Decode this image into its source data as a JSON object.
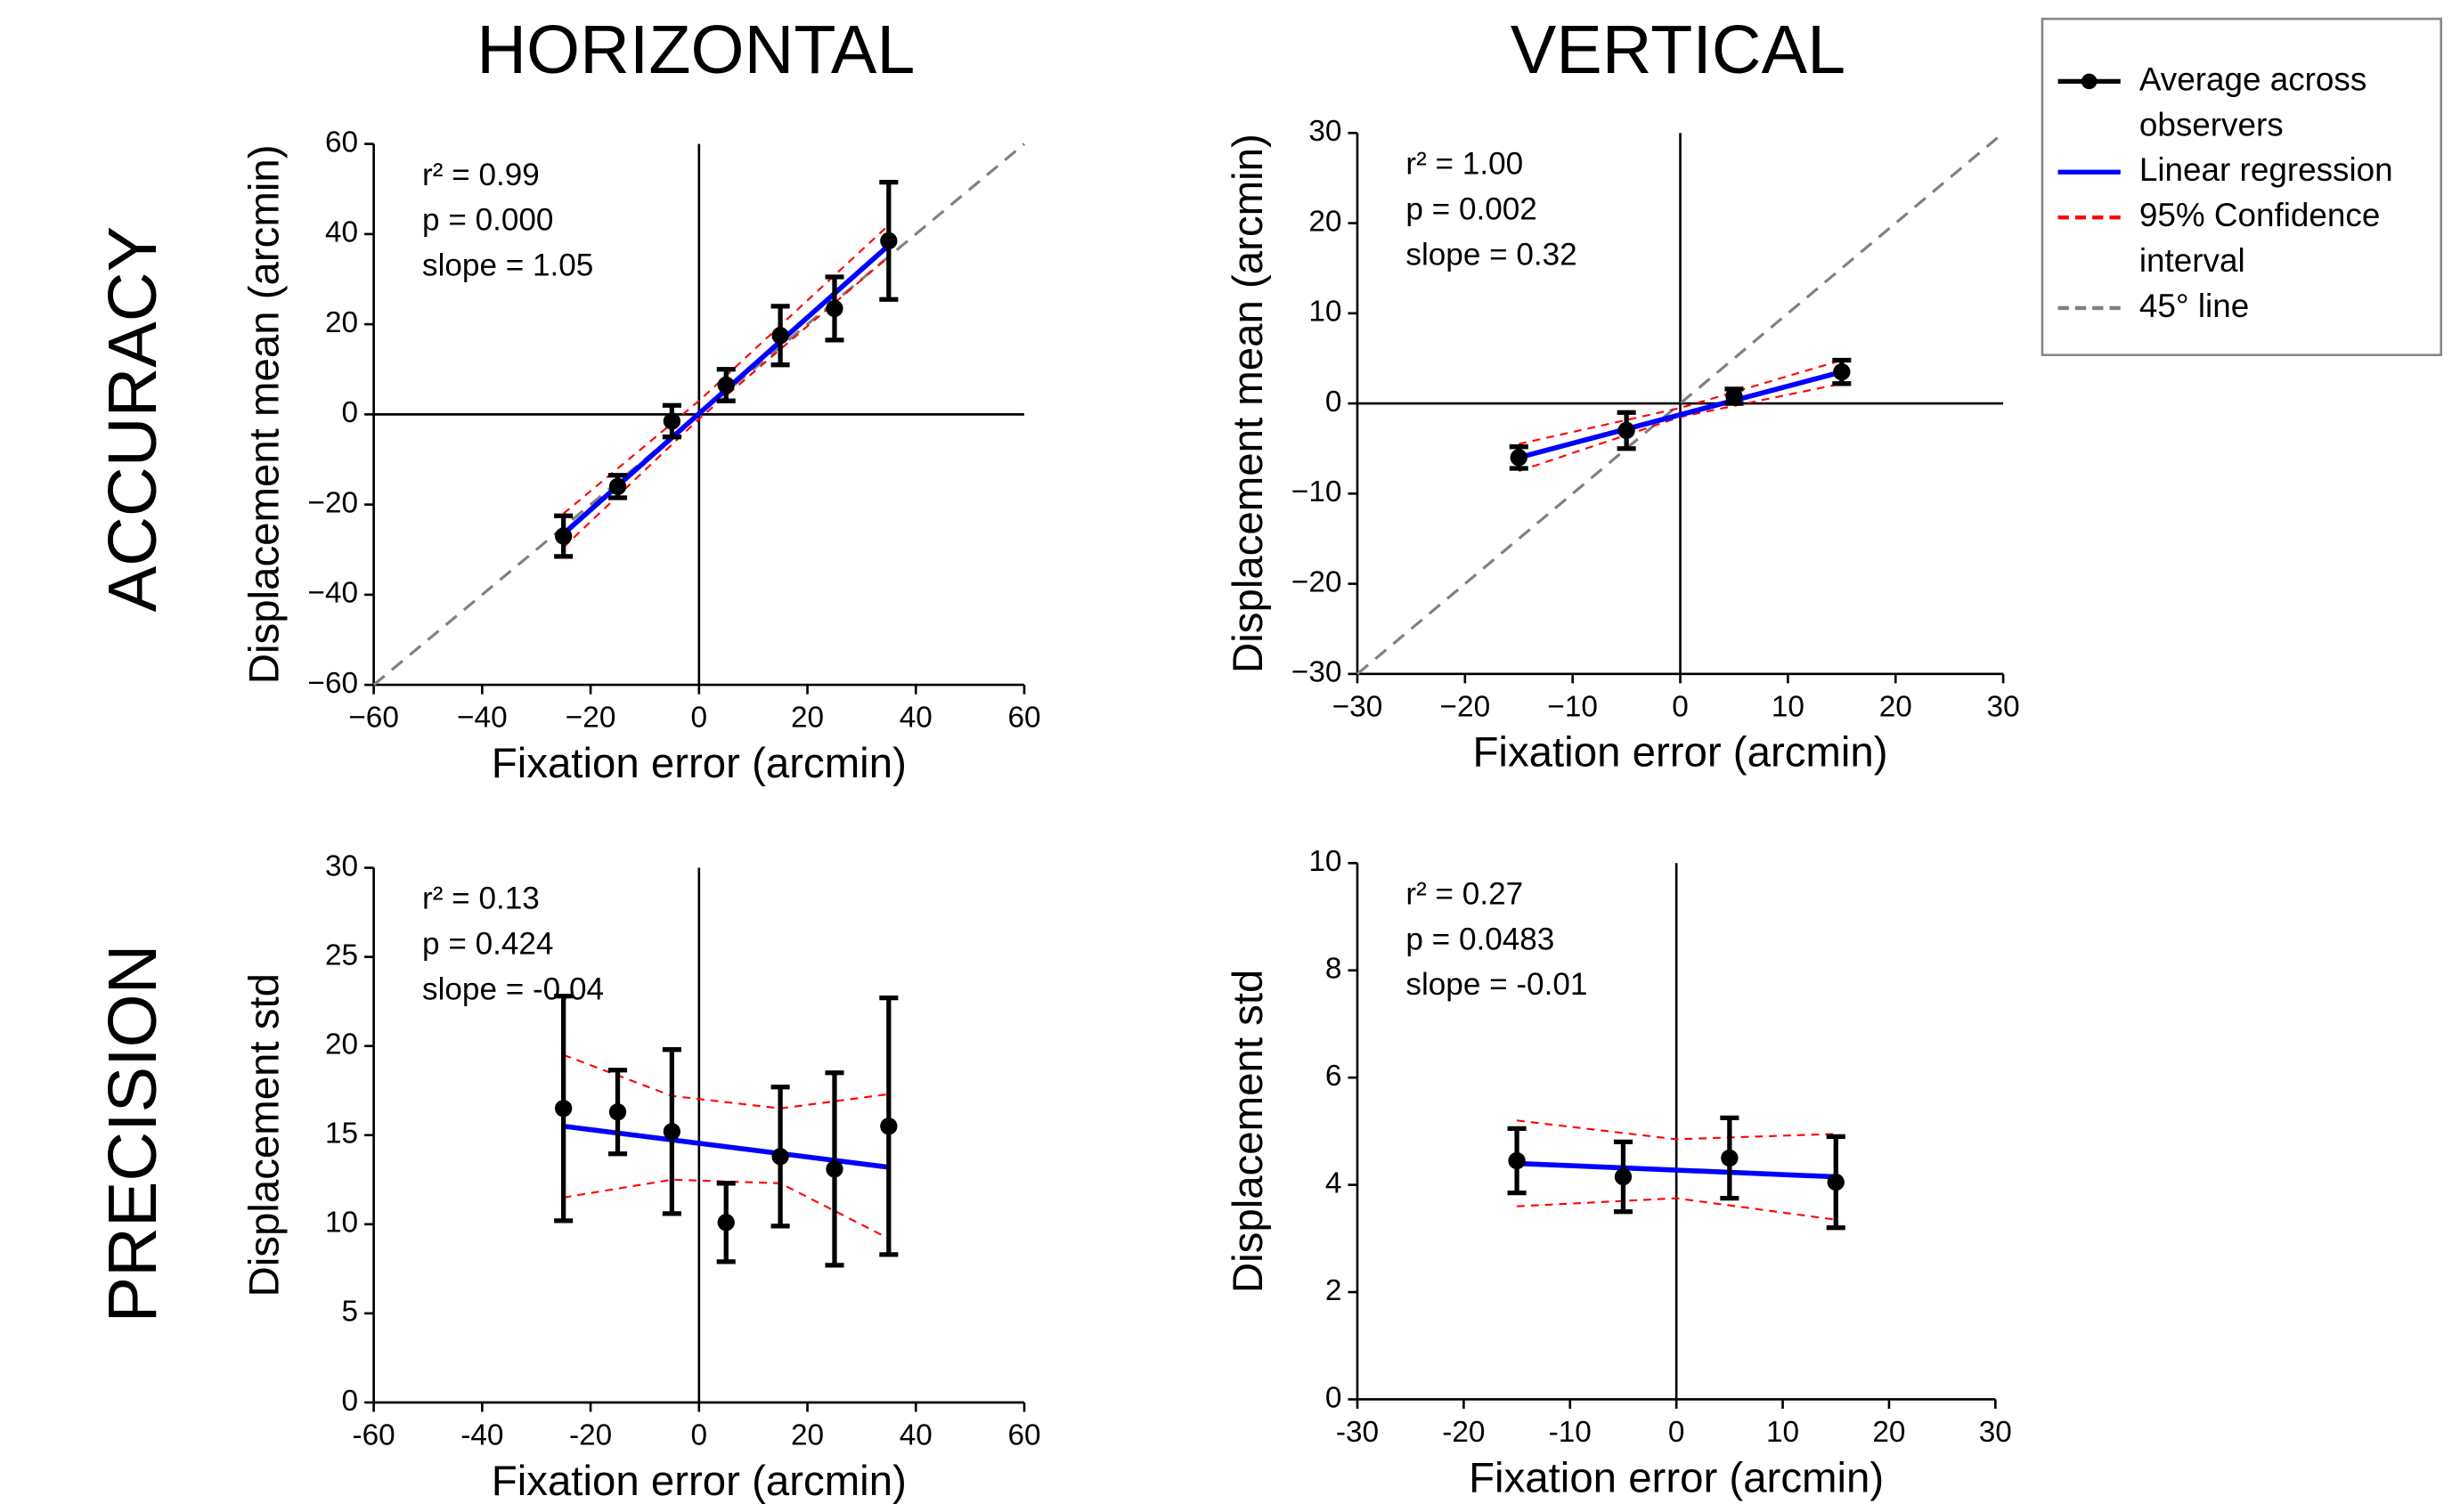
{
  "headers": {
    "columns": [
      "HORIZONTAL",
      "VERTICAL"
    ],
    "rows": [
      "ACCURACY",
      "PRECISION"
    ]
  },
  "legend": {
    "entries": [
      {
        "name": "Average across observers",
        "color": "#000000",
        "dash": false,
        "marker": true
      },
      {
        "name": "Linear regression",
        "color": "#0000ff",
        "dash": false,
        "marker": false
      },
      {
        "name": "95% Confidence interval",
        "color": "#ff0000",
        "dash": true,
        "marker": false
      },
      {
        "name": "45° line",
        "color": "#808080",
        "dash": true,
        "marker": false
      }
    ]
  },
  "chart_data": [
    {
      "type": "scatter",
      "xlabel": "Fixation error (arcmin)",
      "ylabel": "Displacement mean (arcmin)",
      "annotations": [
        "r² = 0.99",
        "p = 0.000",
        "slope = 1.05"
      ],
      "xlim": [
        -60,
        60
      ],
      "ylim": [
        -60,
        60
      ],
      "xticks": [
        {
          "value": -60,
          "label": "−60"
        },
        {
          "value": -40,
          "label": "−40"
        },
        {
          "value": -20,
          "label": "−20"
        },
        0,
        20,
        40,
        60
      ],
      "yticks": [
        {
          "value": -60,
          "label": "−60"
        },
        {
          "value": -40,
          "label": "−40"
        },
        {
          "value": -20,
          "label": "−20"
        },
        0,
        20,
        40,
        60
      ],
      "zero_lines": {
        "x": true,
        "y": true
      },
      "series": [
        {
          "style": "line",
          "color": "#808080",
          "dash": true,
          "x": [
            -60,
            60
          ],
          "values": [
            -60,
            60
          ]
        },
        {
          "style": "line",
          "color": "#ff0000",
          "dash": true,
          "x": [
            -25,
            0,
            35
          ],
          "values": [
            -22,
            3,
            42
          ]
        },
        {
          "style": "line",
          "color": "#ff0000",
          "dash": true,
          "x": [
            -25,
            0,
            35
          ],
          "values": [
            -29.5,
            -1,
            35
          ]
        },
        {
          "style": "line",
          "color": "#0000ff",
          "dash": false,
          "x": [
            -25,
            35
          ],
          "values": [
            -26.5,
            37.5
          ]
        },
        {
          "style": "errorbar",
          "color": "#000000",
          "x": [
            -25,
            -15,
            -5,
            5,
            15,
            25,
            35
          ],
          "values": [
            -27,
            -16,
            -1.5,
            6.5,
            17.5,
            23.5,
            38.5
          ],
          "errors": [
            4.5,
            2.5,
            3.5,
            3.5,
            6.5,
            7,
            13
          ]
        }
      ]
    },
    {
      "type": "scatter",
      "xlabel": "Fixation error (arcmin)",
      "ylabel": "Displacement mean (arcmin)",
      "annotations": [
        "r² = 1.00",
        "p = 0.002",
        "slope = 0.32"
      ],
      "xlim": [
        -30,
        30
      ],
      "ylim": [
        -30,
        30
      ],
      "xticks": [
        {
          "value": -30,
          "label": "−30"
        },
        {
          "value": -20,
          "label": "−20"
        },
        {
          "value": -10,
          "label": "−10"
        },
        0,
        10,
        20,
        30
      ],
      "yticks": [
        {
          "value": -30,
          "label": "−30"
        },
        {
          "value": -20,
          "label": "−20"
        },
        {
          "value": -10,
          "label": "−10"
        },
        0,
        10,
        20,
        30
      ],
      "zero_lines": {
        "x": true,
        "y": true
      },
      "series": [
        {
          "style": "line",
          "color": "#808080",
          "dash": true,
          "x": [
            -30,
            30
          ],
          "values": [
            -30,
            30
          ]
        },
        {
          "style": "line",
          "color": "#ff0000",
          "dash": true,
          "x": [
            -15,
            0,
            15
          ],
          "values": [
            -4.5,
            -0.5,
            4.8
          ]
        },
        {
          "style": "line",
          "color": "#ff0000",
          "dash": true,
          "x": [
            -15,
            0,
            15
          ],
          "values": [
            -7.5,
            -1.5,
            2.2
          ]
        },
        {
          "style": "line",
          "color": "#0000ff",
          "dash": false,
          "x": [
            -15,
            15
          ],
          "values": [
            -6,
            3.5
          ]
        },
        {
          "style": "errorbar",
          "color": "#000000",
          "x": [
            -15,
            -5,
            5,
            15
          ],
          "values": [
            -6,
            -3,
            0.8,
            3.5
          ],
          "errors": [
            1.2,
            2,
            0.8,
            1.3
          ]
        }
      ]
    },
    {
      "type": "scatter",
      "xlabel": "Fixation error (arcmin)",
      "ylabel": "Displacement std",
      "annotations": [
        "r² = 0.13",
        "p = 0.424",
        "slope = -0.04"
      ],
      "xlim": [
        -60,
        60
      ],
      "ylim": [
        0,
        30
      ],
      "xticks": [
        -60,
        -40,
        -20,
        0,
        20,
        40,
        60
      ],
      "yticks": [
        0,
        5,
        10,
        15,
        20,
        25,
        30
      ],
      "zero_lines": {
        "x": true,
        "y": false
      },
      "series": [
        {
          "style": "line",
          "color": "#ff0000",
          "dash": true,
          "x": [
            -25,
            -5,
            15,
            35
          ],
          "values": [
            19.5,
            17.2,
            16.5,
            17.3
          ]
        },
        {
          "style": "line",
          "color": "#ff0000",
          "dash": true,
          "x": [
            -25,
            -5,
            15,
            35
          ],
          "values": [
            11.5,
            12.5,
            12.3,
            9.2
          ]
        },
        {
          "style": "line",
          "color": "#0000ff",
          "dash": false,
          "x": [
            -25,
            35
          ],
          "values": [
            15.5,
            13.2
          ]
        },
        {
          "style": "errorbar",
          "color": "#000000",
          "x": [
            -25,
            -15,
            -5,
            5,
            15,
            25,
            35
          ],
          "values": [
            16.5,
            16.3,
            15.2,
            10.1,
            13.8,
            13.1,
            15.5
          ],
          "errors": [
            6.3,
            2.35,
            4.6,
            2.2,
            3.9,
            5.4,
            7.2
          ]
        }
      ]
    },
    {
      "type": "scatter",
      "xlabel": "Fixation error (arcmin)",
      "ylabel": "Displacement std",
      "annotations": [
        "r² = 0.27",
        "p = 0.0483",
        "slope =  -0.01"
      ],
      "xlim": [
        -30,
        30
      ],
      "ylim": [
        0,
        10
      ],
      "xticks": [
        -30,
        -20,
        -10,
        0,
        10,
        20,
        30
      ],
      "yticks": [
        0,
        2,
        4,
        6,
        8,
        10
      ],
      "zero_lines": {
        "x": true,
        "y": false
      },
      "series": [
        {
          "style": "line",
          "color": "#ff0000",
          "dash": true,
          "x": [
            -15,
            0,
            15
          ],
          "values": [
            5.2,
            4.85,
            4.95
          ]
        },
        {
          "style": "line",
          "color": "#ff0000",
          "dash": true,
          "x": [
            -15,
            0,
            15
          ],
          "values": [
            3.6,
            3.75,
            3.35
          ]
        },
        {
          "style": "line",
          "color": "#0000ff",
          "dash": false,
          "x": [
            -15,
            15
          ],
          "values": [
            4.4,
            4.15
          ]
        },
        {
          "style": "errorbar",
          "color": "#000000",
          "x": [
            -15,
            -5,
            5,
            15
          ],
          "values": [
            4.45,
            4.15,
            4.5,
            4.05
          ],
          "errors": [
            0.6,
            0.65,
            0.75,
            0.85
          ]
        }
      ]
    }
  ]
}
